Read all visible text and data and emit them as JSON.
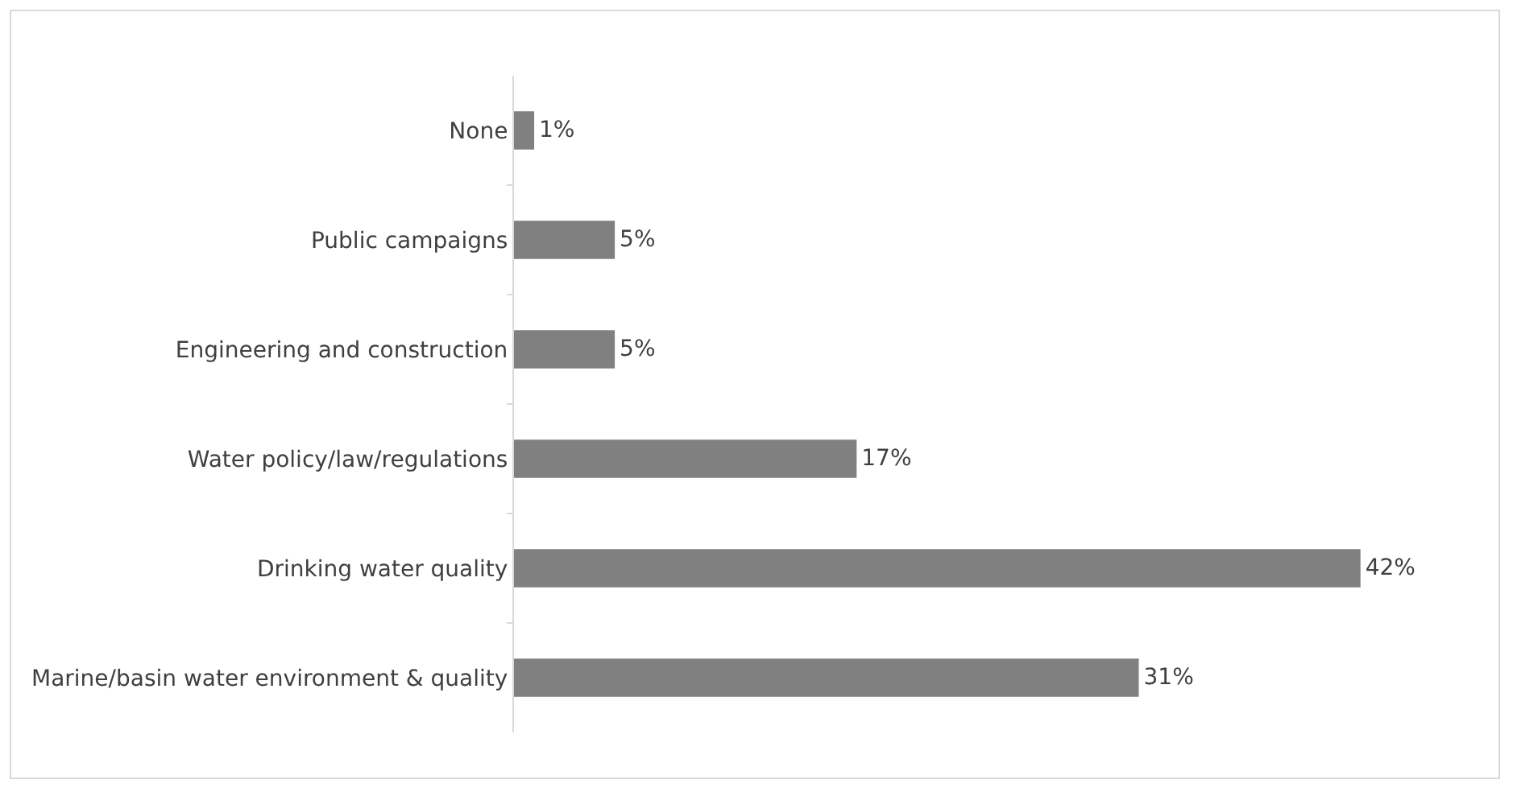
{
  "chart_data": {
    "type": "bar",
    "orientation": "horizontal",
    "categories": [
      "None",
      "Public campaigns",
      "Engineering and construction",
      "Water policy/law/regulations",
      "Drinking water quality",
      "Marine/basin water environment & quality"
    ],
    "values": [
      1,
      5,
      5,
      17,
      42,
      31
    ],
    "value_labels": [
      "1%",
      "5%",
      "5%",
      "17%",
      "42%",
      "31%"
    ],
    "color": "#808080"
  }
}
